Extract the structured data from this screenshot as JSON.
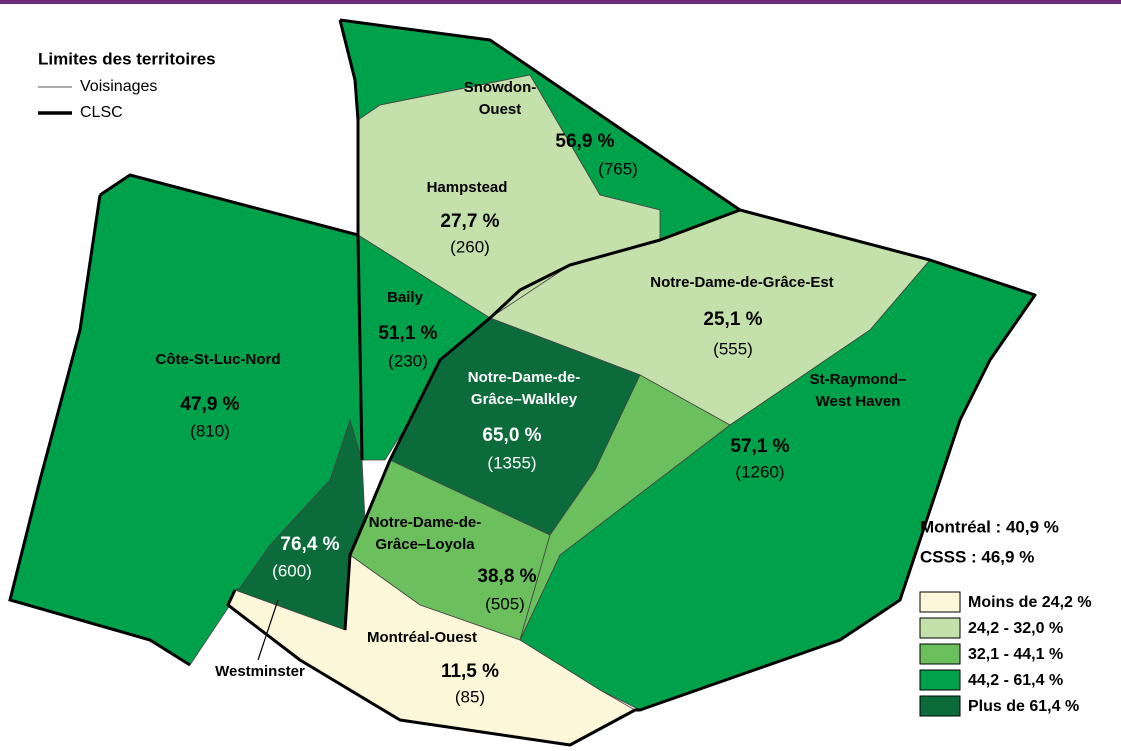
{
  "map": {
    "boundary_legend": {
      "title": "Limites des territoires",
      "items": [
        "Voisinages",
        "CLSC"
      ]
    },
    "regions": [
      {
        "name": [
          "Snowdon-",
          "Ouest"
        ],
        "value": "56,9 %",
        "count": "(765)",
        "color": "#00a14b"
      },
      {
        "name": [
          "Hampstead"
        ],
        "value": "27,7 %",
        "count": "(260)",
        "color": "#c4e0ab"
      },
      {
        "name": [
          "Baily"
        ],
        "value": "51,1 %",
        "count": "(230)",
        "color": "#00a14b"
      },
      {
        "name": [
          "Côte-St-Luc-Nord"
        ],
        "value": "47,9 %",
        "count": "(810)",
        "color": "#00a14b"
      },
      {
        "name": [
          "Notre-Dame-de-Grâce-Est"
        ],
        "value": "25,1 %",
        "count": "(555)",
        "color": "#c4e0ab"
      },
      {
        "name": [
          "Notre-Dame-de-",
          "Grâce–Walkley"
        ],
        "value": "65,0 %",
        "count": "(1355)",
        "color": "#0b6b3a"
      },
      {
        "name": [
          "St-Raymond–",
          "West Haven"
        ],
        "value": "57,1 %",
        "count": "(1260)",
        "color": "#00a14b"
      },
      {
        "name": [
          "Notre-Dame-de-",
          "Grâce–Loyola"
        ],
        "value": "38,8 %",
        "count": "(505)",
        "color": "#6bbf5d"
      },
      {
        "name": [
          "Westminster"
        ],
        "value": "76,4 %",
        "count": "(600)",
        "color": "#0b6b3a"
      },
      {
        "name": [
          "Montréal-Ouest"
        ],
        "value": "11,5 %",
        "count": "(85)",
        "color": "#fdf7d9"
      },
      {
        "color": "#6bbf5d"
      }
    ],
    "summary": [
      "Montréal : 40,9 %",
      "CSSS :  46,9 %"
    ],
    "classes": [
      {
        "label": "Moins de 24,2 %",
        "color": "#fdf7d9"
      },
      {
        "label": "24,2 - 32,0 %",
        "color": "#c4e0ab"
      },
      {
        "label": "32,1 - 44,1 %",
        "color": "#6bbf5d"
      },
      {
        "label": "44,2 - 61,4 %",
        "color": "#00a14b"
      },
      {
        "label": "Plus de 61,4 %",
        "color": "#0b6b3a"
      }
    ]
  }
}
